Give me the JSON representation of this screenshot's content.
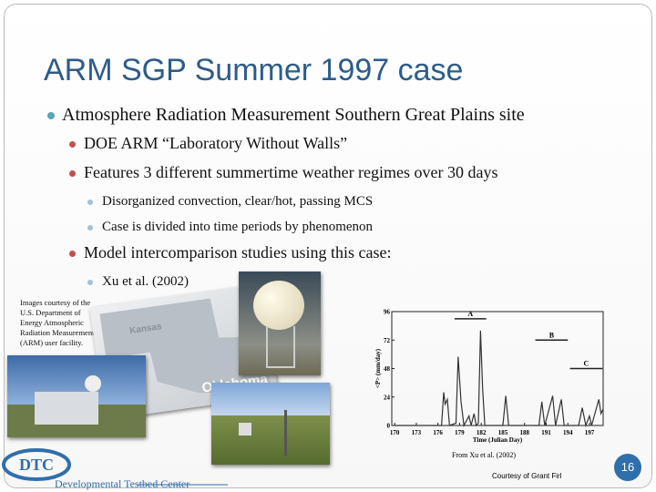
{
  "slide": {
    "title": "ARM SGP Summer 1997 case",
    "bullets": [
      {
        "text": "Atmosphere Radiation Measurement Southern Great Plains site",
        "children": [
          {
            "text": "DOE ARM “Laboratory Without Walls”"
          },
          {
            "text": "Features 3 different summertime weather regimes over 30 days",
            "children": [
              {
                "text": "Disorganized convection, clear/hot, passing MCS"
              },
              {
                "text": "Case is divided into time periods by phenomenon"
              }
            ]
          },
          {
            "text": "Model intercomparison studies using this case:",
            "children": [
              {
                "text": "Xu et al. (2002)"
              }
            ]
          }
        ]
      }
    ],
    "image_credit": "Images courtesy of the U.S. Department of Energy Atmospheric Radiation Measurement (ARM) user facility.",
    "map_labels": [
      "Kansas",
      "Oklahoma"
    ],
    "figure": {
      "type": "line",
      "ylabel": "<P> (mm/day)",
      "xlabel": "Time (Julian Day)",
      "x": [
        170,
        175,
        176.5,
        176.8,
        177,
        177.3,
        177.6,
        178.5,
        178.8,
        179.2,
        179.6,
        180.3,
        180.6,
        181,
        181.3,
        181.6,
        181.9,
        182.2,
        182.5,
        185,
        185.4,
        185.8,
        190,
        190.4,
        190.8,
        191.9,
        192.3,
        193.1,
        193.5,
        195.5,
        196,
        196.5,
        197,
        197.3,
        198.3,
        198.6,
        198.9
      ],
      "values": [
        0,
        0,
        0,
        28,
        18,
        22,
        0,
        2,
        58,
        20,
        0,
        8,
        0,
        10,
        0,
        2,
        80,
        30,
        0,
        0,
        25,
        0,
        0,
        20,
        0,
        25,
        0,
        22,
        0,
        0,
        15,
        0,
        8,
        0,
        22,
        10,
        14
      ],
      "color": "#333333",
      "xlim": [
        169.6,
        198.9
      ],
      "ylim": [
        0,
        96
      ],
      "xticks": [
        170,
        173,
        176,
        179,
        182,
        185,
        188,
        191,
        194,
        197
      ],
      "yticks": [
        0,
        24,
        48,
        72,
        96
      ],
      "periods": [
        {
          "label": "A",
          "start": 178.3,
          "end": 182.7,
          "level": 90
        },
        {
          "label": "B",
          "start": 189.5,
          "end": 194,
          "level": 72
        },
        {
          "label": "C",
          "start": 194.3,
          "end": 198.8,
          "level": 48
        }
      ]
    },
    "figure_caption": "From Xu et al. (2002)",
    "footer": {
      "credit": "Courtesy of Grant Firl",
      "logo": "DTC",
      "org": "Developmental Testbed Center"
    },
    "page_number": 16
  }
}
